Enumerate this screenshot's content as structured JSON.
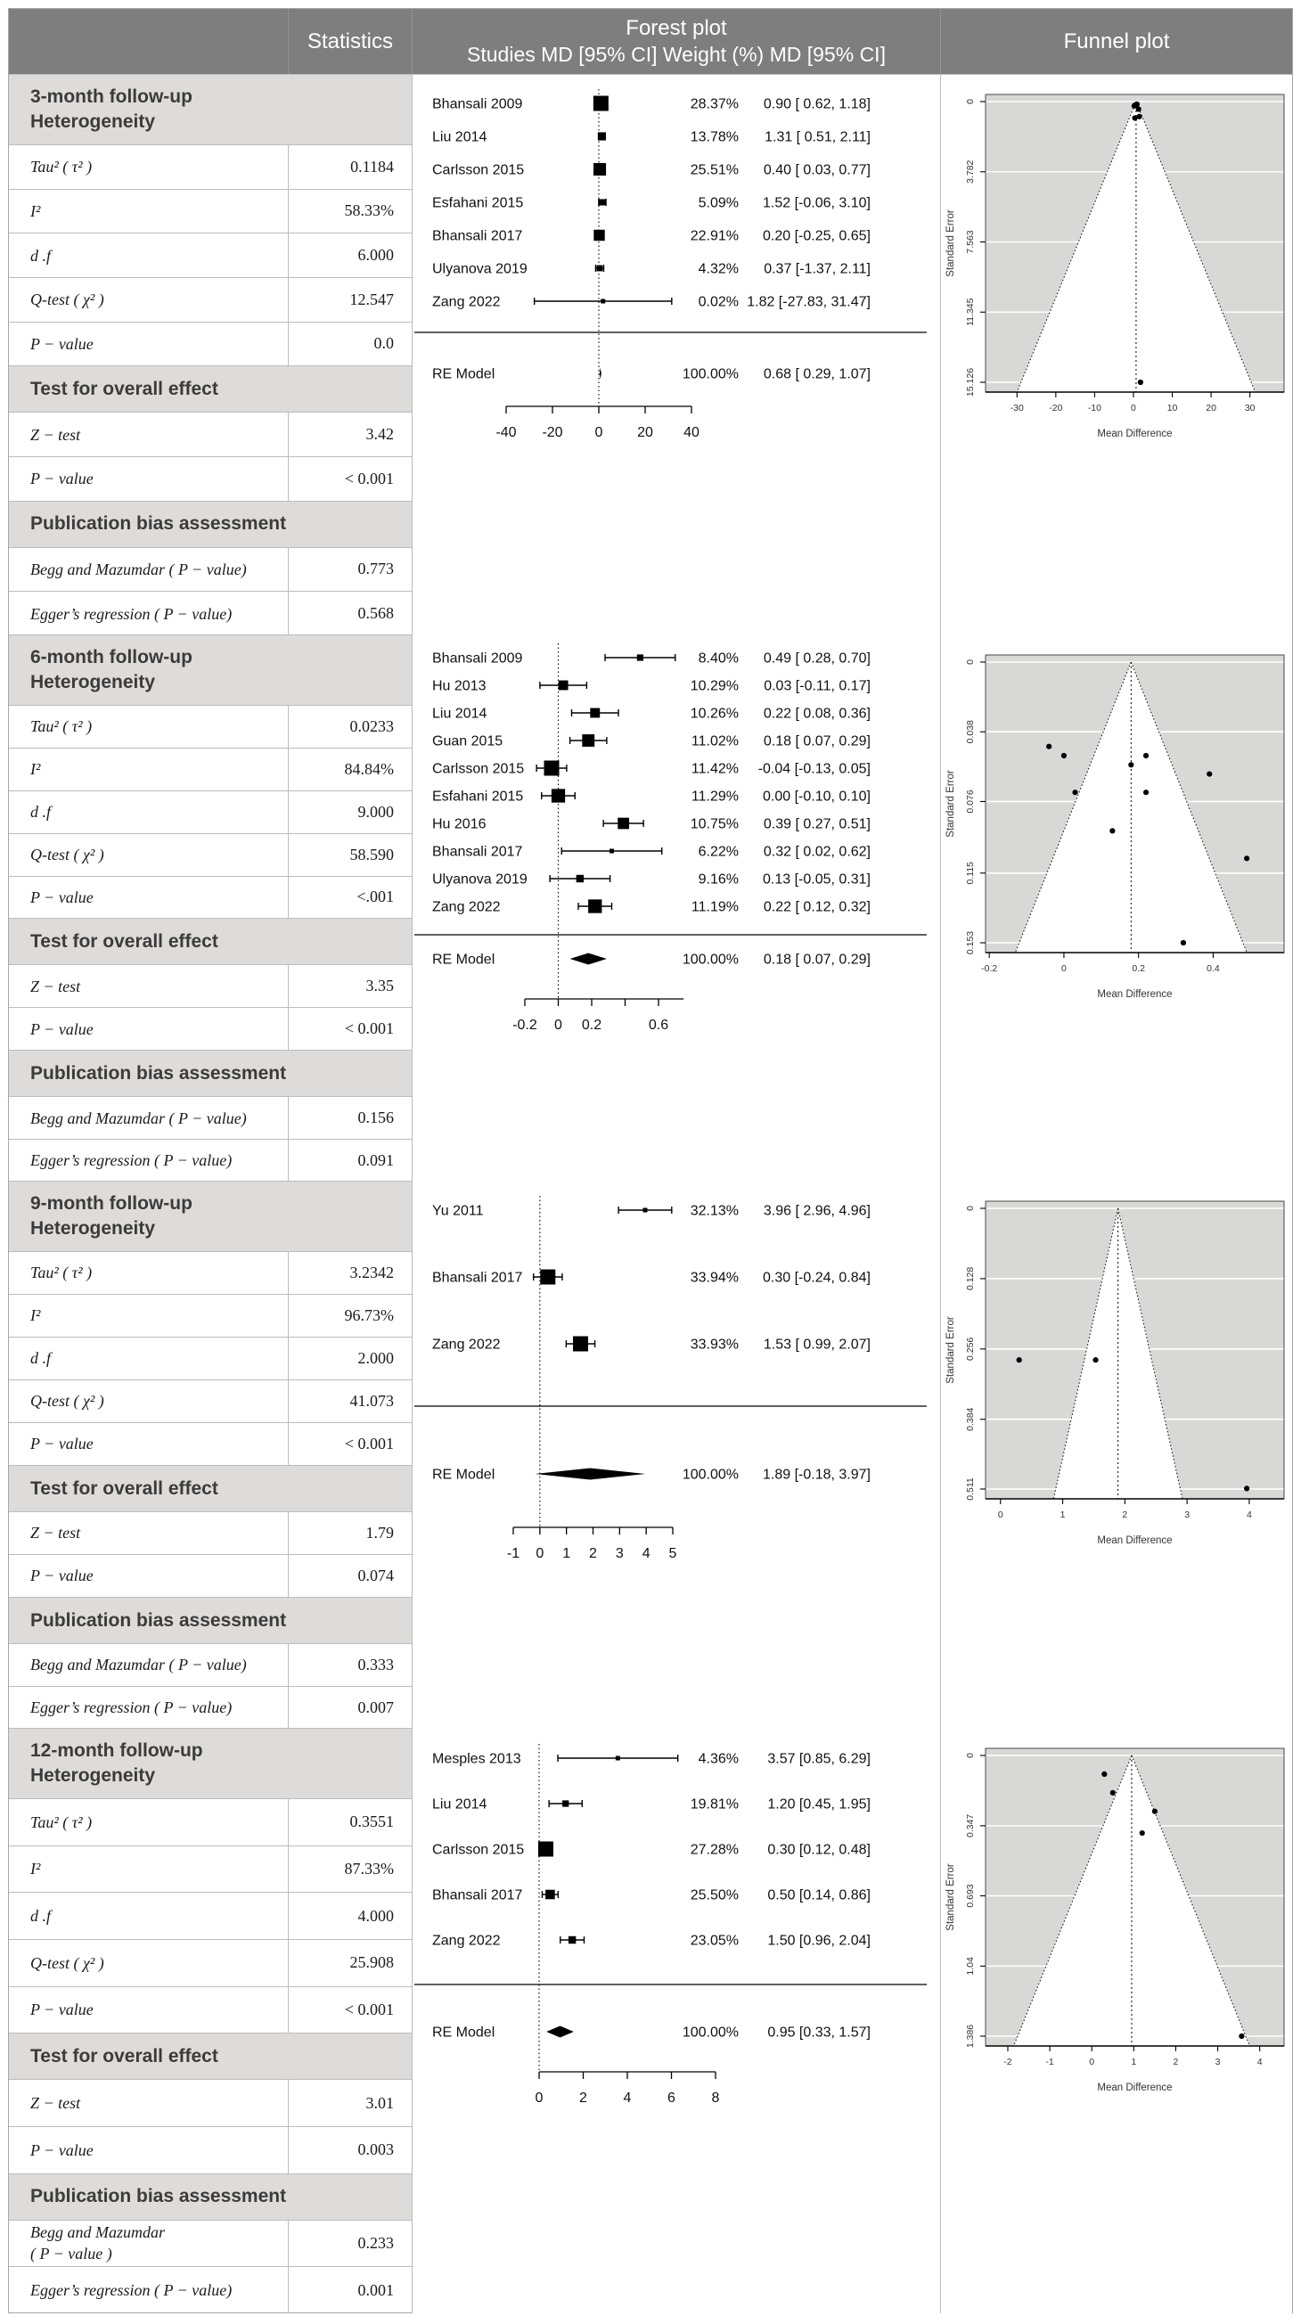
{
  "header": {
    "statistics": "Statistics",
    "forest_title": "Forest plot",
    "forest_subtitle": "Studies MD [95% CI] Weight (%) MD [95% CI]",
    "funnel_title": "Funnel plot"
  },
  "colors": {
    "header_bg": "#7e7e7e",
    "header_text": "#ffffff",
    "section_header_bg": "#dedcda",
    "border": "#bcbcbc",
    "funnel_bg": "#d8d8d6",
    "text": "#1b1b1b"
  },
  "sections": [
    {
      "title": "3-month follow-up",
      "subtitle": "Heterogeneity",
      "heterogeneity": [
        {
          "label": "Tau² ( τ² )",
          "value": "0.1184"
        },
        {
          "label": "I²",
          "value": "58.33%"
        },
        {
          "label": "d .f",
          "value": "6.000"
        },
        {
          "label": "Q-test ( χ² )",
          "value": "12.547"
        },
        {
          "label": "P − value",
          "value": "0.0"
        }
      ],
      "overall_header": "Test for overall effect",
      "overall": [
        {
          "label": "Z − test",
          "value": "3.42"
        },
        {
          "label": "P − value",
          "value": "< 0.001"
        }
      ],
      "bias_header": "Publication bias assessment",
      "bias": [
        {
          "label": "Begg and Mazumdar ( P − value)",
          "value": "0.773"
        },
        {
          "label": "Egger’s regression ( P − value)",
          "value": "0.568"
        }
      ]
    },
    {
      "title": "6-month follow-up",
      "subtitle": "Heterogeneity",
      "heterogeneity": [
        {
          "label": "Tau² ( τ² )",
          "value": "0.0233"
        },
        {
          "label": "I²",
          "value": "84.84%"
        },
        {
          "label": "d .f",
          "value": "9.000"
        },
        {
          "label": "Q-test ( χ² )",
          "value": "58.590"
        },
        {
          "label": "P − value",
          "value": "<.001"
        }
      ],
      "overall_header": "Test for overall effect",
      "overall": [
        {
          "label": "Z − test",
          "value": "3.35"
        },
        {
          "label": "P − value",
          "value": "< 0.001"
        }
      ],
      "bias_header": "Publication bias assessment",
      "bias": [
        {
          "label": "Begg and Mazumdar ( P − value)",
          "value": "0.156"
        },
        {
          "label": "Egger’s regression ( P − value)",
          "value": "0.091"
        }
      ]
    },
    {
      "title": "9-month follow-up",
      "subtitle": "Heterogeneity",
      "heterogeneity": [
        {
          "label": "Tau² ( τ² )",
          "value": "3.2342"
        },
        {
          "label": "I²",
          "value": "96.73%"
        },
        {
          "label": "d .f",
          "value": "2.000"
        },
        {
          "label": "Q-test ( χ² )",
          "value": "41.073"
        },
        {
          "label": "P − value",
          "value": "< 0.001"
        }
      ],
      "overall_header": "Test for overall effect",
      "overall": [
        {
          "label": "Z − test",
          "value": "1.79"
        },
        {
          "label": "P − value",
          "value": "0.074"
        }
      ],
      "bias_header": "Publication bias assessment",
      "bias": [
        {
          "label": "Begg and Mazumdar ( P − value)",
          "value": "0.333"
        },
        {
          "label": "Egger’s regression ( P − value)",
          "value": "0.007"
        }
      ]
    },
    {
      "title": "12-month follow-up",
      "subtitle": "Heterogeneity",
      "heterogeneity": [
        {
          "label": "Tau² ( τ² )",
          "value": "0.3551"
        },
        {
          "label": "I²",
          "value": "87.33%"
        },
        {
          "label": "d .f",
          "value": "4.000"
        },
        {
          "label": "Q-test ( χ² )",
          "value": "25.908"
        },
        {
          "label": "P − value",
          "value": "< 0.001"
        }
      ],
      "overall_header": "Test for overall effect",
      "overall": [
        {
          "label": "Z − test",
          "value": "3.01"
        },
        {
          "label": "P − value",
          "value": "0.003"
        }
      ],
      "bias_header": "Publication bias assessment",
      "bias": [
        {
          "label": "Begg and Mazumdar\n( P − value )",
          "value": "0.233"
        },
        {
          "label": "Egger’s regression ( P − value)",
          "value": "0.001"
        }
      ]
    }
  ],
  "chart_data": [
    {
      "section": "3-month follow-up",
      "forest": {
        "type": "forest",
        "studies": [
          {
            "name": "Bhansali 2009",
            "weight": "28.37%",
            "ci": "0.90 [ 0.62, 1.18]",
            "md": 0.9,
            "lo": 0.62,
            "hi": 1.18
          },
          {
            "name": "Liu 2014",
            "weight": "13.78%",
            "ci": "1.31 [ 0.51, 2.11]",
            "md": 1.31,
            "lo": 0.51,
            "hi": 2.11
          },
          {
            "name": "Carlsson 2015",
            "weight": "25.51%",
            "ci": "0.40 [ 0.03, 0.77]",
            "md": 0.4,
            "lo": 0.03,
            "hi": 0.77
          },
          {
            "name": "Esfahani 2015",
            "weight": "5.09%",
            "ci": "1.52 [-0.06, 3.10]",
            "md": 1.52,
            "lo": -0.06,
            "hi": 3.1
          },
          {
            "name": "Bhansali 2017",
            "weight": "22.91%",
            "ci": "0.20 [-0.25, 0.65]",
            "md": 0.2,
            "lo": -0.25,
            "hi": 0.65
          },
          {
            "name": "Ulyanova 2019",
            "weight": "4.32%",
            "ci": "0.37 [-1.37, 2.11]",
            "md": 0.37,
            "lo": -1.37,
            "hi": 2.11
          },
          {
            "name": "Zang 2022",
            "weight": "0.02%",
            "ci": "1.82 [-27.83, 31.47]",
            "md": 1.82,
            "lo": -27.83,
            "hi": 31.47
          }
        ],
        "summary": {
          "label": "RE Model",
          "weight": "100.00%",
          "ci": "0.68 [ 0.29, 1.07]",
          "md": 0.68,
          "lo": 0.29,
          "hi": 1.07
        },
        "x_ticks": [
          -40,
          -20,
          0,
          20,
          40
        ],
        "x_tick_labels": [
          "-40",
          "-20",
          "0",
          "20",
          "40"
        ],
        "zero_line": 0
      },
      "funnel": {
        "type": "scatter",
        "xlabel": "Mean Difference",
        "ylabel": "Standard Error",
        "x_ticks": [
          -30,
          -20,
          -10,
          0,
          10,
          20,
          30
        ],
        "x_tick_labels": [
          "-30",
          "-20",
          "-10",
          "0",
          "10",
          "20",
          "30"
        ],
        "y_ticks": [
          0,
          3.782,
          7.563,
          11.345,
          15.126
        ],
        "y_tick_labels": [
          "0",
          "3.782",
          "7.563",
          "11.345",
          "15.126"
        ],
        "x_range": [
          -38.1,
          38.8
        ],
        "se_max": 15.126,
        "center": 0.68,
        "points": [
          [
            0.9,
            0.143
          ],
          [
            1.31,
            0.408
          ],
          [
            0.4,
            0.189
          ],
          [
            1.52,
            0.806
          ],
          [
            0.2,
            0.23
          ],
          [
            0.37,
            0.888
          ],
          [
            1.82,
            15.126
          ]
        ]
      }
    },
    {
      "section": "6-month follow-up",
      "forest": {
        "type": "forest",
        "studies": [
          {
            "name": "Bhansali 2009",
            "weight": "8.40%",
            "ci": "0.49 [ 0.28, 0.70]",
            "md": 0.49,
            "lo": 0.28,
            "hi": 0.7
          },
          {
            "name": "Hu 2013",
            "weight": "10.29%",
            "ci": "0.03 [-0.11, 0.17]",
            "md": 0.03,
            "lo": -0.11,
            "hi": 0.17
          },
          {
            "name": "Liu 2014",
            "weight": "10.26%",
            "ci": "0.22 [ 0.08, 0.36]",
            "md": 0.22,
            "lo": 0.08,
            "hi": 0.36
          },
          {
            "name": "Guan 2015",
            "weight": "11.02%",
            "ci": "0.18 [ 0.07, 0.29]",
            "md": 0.18,
            "lo": 0.07,
            "hi": 0.29
          },
          {
            "name": "Carlsson 2015",
            "weight": "11.42%",
            "ci": "-0.04 [-0.13, 0.05]",
            "md": -0.04,
            "lo": -0.13,
            "hi": 0.05
          },
          {
            "name": "Esfahani 2015",
            "weight": "11.29%",
            "ci": "0.00 [-0.10, 0.10]",
            "md": 0.0,
            "lo": -0.1,
            "hi": 0.1
          },
          {
            "name": "Hu 2016",
            "weight": "10.75%",
            "ci": "0.39 [ 0.27, 0.51]",
            "md": 0.39,
            "lo": 0.27,
            "hi": 0.51
          },
          {
            "name": "Bhansali 2017",
            "weight": "6.22%",
            "ci": "0.32 [ 0.02, 0.62]",
            "md": 0.32,
            "lo": 0.02,
            "hi": 0.62
          },
          {
            "name": "Ulyanova 2019",
            "weight": "9.16%",
            "ci": "0.13 [-0.05, 0.31]",
            "md": 0.13,
            "lo": -0.05,
            "hi": 0.31
          },
          {
            "name": "Zang 2022",
            "weight": "11.19%",
            "ci": "0.22 [ 0.12, 0.32]",
            "md": 0.22,
            "lo": 0.12,
            "hi": 0.32
          }
        ],
        "summary": {
          "label": "RE Model",
          "weight": "100.00%",
          "ci": "0.18 [ 0.07, 0.29]",
          "md": 0.18,
          "lo": 0.07,
          "hi": 0.29
        },
        "x_ticks": [
          -0.2,
          0,
          0.2,
          0.4,
          0.6
        ],
        "x_tick_labels": [
          "-0.2",
          "0",
          "0.2",
          "",
          "0.6"
        ],
        "zero_line": 0
      },
      "funnel": {
        "type": "scatter",
        "xlabel": "Mean Difference",
        "ylabel": "Standard Error",
        "x_ticks": [
          -0.2,
          0,
          0.2,
          0.4
        ],
        "x_tick_labels": [
          "-0.2",
          "0",
          "0.2",
          "0.4"
        ],
        "y_ticks": [
          0,
          0.038,
          0.076,
          0.115,
          0.153
        ],
        "y_tick_labels": [
          "0",
          "0.038",
          "0.076",
          "0.115",
          "0.153"
        ],
        "x_range": [
          -0.21,
          0.59
        ],
        "se_max": 0.153,
        "center": 0.18,
        "points": [
          [
            0.49,
            0.107
          ],
          [
            0.03,
            0.071
          ],
          [
            0.22,
            0.071
          ],
          [
            0.18,
            0.056
          ],
          [
            -0.04,
            0.046
          ],
          [
            0.0,
            0.051
          ],
          [
            0.39,
            0.061
          ],
          [
            0.32,
            0.153
          ],
          [
            0.13,
            0.092
          ],
          [
            0.22,
            0.051
          ]
        ]
      }
    },
    {
      "section": "9-month follow-up",
      "forest": {
        "type": "forest",
        "studies": [
          {
            "name": "Yu 2011",
            "weight": "32.13%",
            "ci": "3.96 [ 2.96, 4.96]",
            "md": 3.96,
            "lo": 2.96,
            "hi": 4.96
          },
          {
            "name": "Bhansali 2017",
            "weight": "33.94%",
            "ci": "0.30 [-0.24, 0.84]",
            "md": 0.3,
            "lo": -0.24,
            "hi": 0.84
          },
          {
            "name": "Zang 2022",
            "weight": "33.93%",
            "ci": "1.53 [ 0.99, 2.07]",
            "md": 1.53,
            "lo": 0.99,
            "hi": 2.07
          }
        ],
        "summary": {
          "label": "RE Model",
          "weight": "100.00%",
          "ci": "1.89 [-0.18, 3.97]",
          "md": 1.89,
          "lo": -0.18,
          "hi": 3.97
        },
        "x_ticks": [
          -1,
          0,
          1,
          2,
          3,
          4,
          5
        ],
        "x_tick_labels": [
          "-1",
          "0",
          "1",
          "2",
          "3",
          "4",
          "5"
        ],
        "zero_line": 0
      },
      "funnel": {
        "type": "scatter",
        "xlabel": "Mean Difference",
        "ylabel": "Standard Error",
        "x_ticks": [
          0,
          1,
          2,
          3,
          4
        ],
        "x_tick_labels": [
          "0",
          "1",
          "2",
          "3",
          "4"
        ],
        "y_ticks": [
          0,
          0.128,
          0.256,
          0.384,
          0.511
        ],
        "y_tick_labels": [
          "0",
          "0.128",
          "0.256",
          "0.384",
          "0.511"
        ],
        "x_range": [
          -0.24,
          4.56
        ],
        "se_max": 0.511,
        "center": 1.89,
        "points": [
          [
            3.96,
            0.51
          ],
          [
            0.3,
            0.276
          ],
          [
            1.53,
            0.276
          ]
        ]
      }
    },
    {
      "section": "12-month follow-up",
      "forest": {
        "type": "forest",
        "studies": [
          {
            "name": "Mesples 2013",
            "weight": "4.36%",
            "ci": "3.57 [0.85, 6.29]",
            "md": 3.57,
            "lo": 0.85,
            "hi": 6.29
          },
          {
            "name": "Liu 2014",
            "weight": "19.81%",
            "ci": "1.20 [0.45, 1.95]",
            "md": 1.2,
            "lo": 0.45,
            "hi": 1.95
          },
          {
            "name": "Carlsson 2015",
            "weight": "27.28%",
            "ci": "0.30 [0.12, 0.48]",
            "md": 0.3,
            "lo": 0.12,
            "hi": 0.48
          },
          {
            "name": "Bhansali 2017",
            "weight": "25.50%",
            "ci": "0.50 [0.14, 0.86]",
            "md": 0.5,
            "lo": 0.14,
            "hi": 0.86
          },
          {
            "name": "Zang 2022",
            "weight": "23.05%",
            "ci": "1.50 [0.96, 2.04]",
            "md": 1.5,
            "lo": 0.96,
            "hi": 2.04
          }
        ],
        "summary": {
          "label": "RE Model",
          "weight": "100.00%",
          "ci": "0.95 [0.33, 1.57]",
          "md": 0.95,
          "lo": 0.33,
          "hi": 1.57
        },
        "x_ticks": [
          0,
          2,
          4,
          6,
          8
        ],
        "x_tick_labels": [
          "0",
          "2",
          "4",
          "6",
          "8"
        ],
        "zero_line": 0
      },
      "funnel": {
        "type": "scatter",
        "xlabel": "Mean Difference",
        "ylabel": "Standard Error",
        "x_ticks": [
          -2,
          -1,
          0,
          1,
          2,
          3,
          4
        ],
        "x_tick_labels": [
          "-2",
          "-1",
          "0",
          "1",
          "2",
          "3",
          "4"
        ],
        "y_ticks": [
          0,
          0.347,
          0.693,
          1.04,
          1.386
        ],
        "y_tick_labels": [
          "0",
          "0.347",
          "0.693",
          "1.04",
          "1.386"
        ],
        "x_range": [
          -2.53,
          4.58
        ],
        "se_max": 1.386,
        "center": 0.95,
        "points": [
          [
            3.57,
            1.386
          ],
          [
            1.2,
            0.383
          ],
          [
            0.3,
            0.092
          ],
          [
            0.5,
            0.184
          ],
          [
            1.5,
            0.276
          ]
        ]
      }
    }
  ]
}
